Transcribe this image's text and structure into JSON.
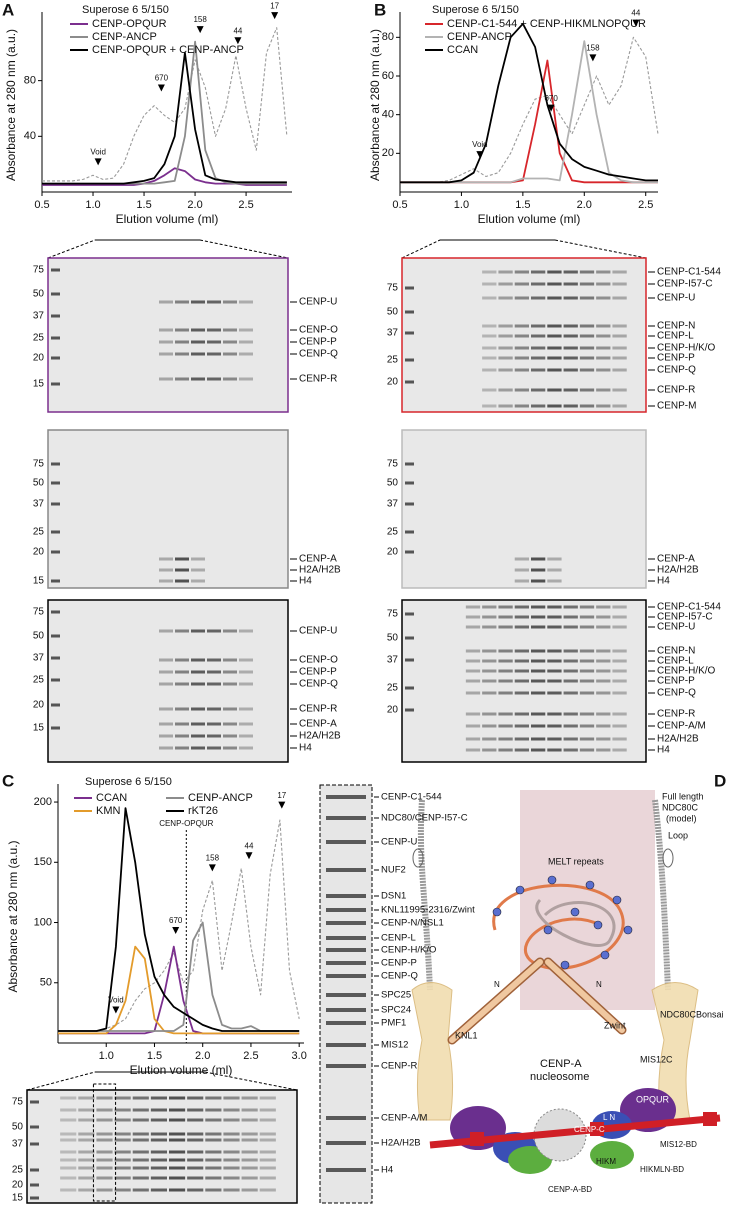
{
  "panel_labels": [
    "A",
    "B",
    "C",
    "D"
  ],
  "chart_data": [
    {
      "type": "line",
      "title": "Superose 6 5/150",
      "xlabel": "Elution volume (ml)",
      "ylabel": "Absorbance at 280 nm (a.u.)",
      "x": [
        0.5,
        0.6,
        0.7,
        0.8,
        0.9,
        1.0,
        1.1,
        1.2,
        1.3,
        1.4,
        1.5,
        1.6,
        1.7,
        1.8,
        1.9,
        2.0,
        2.1,
        2.2,
        2.3,
        2.4,
        2.5,
        2.6,
        2.7,
        2.8,
        2.9
      ],
      "xlim": [
        0.5,
        2.95
      ],
      "xticks": [
        0.5,
        {
          "value": 1,
          "label": "1.0"
        },
        1.5,
        {
          "value": 2,
          "label": "2.0"
        },
        2.5
      ],
      "ylim": [
        0,
        125
      ],
      "yticks": [
        40,
        80
      ],
      "legend": "top-left",
      "legend_columns": 1,
      "series": [
        {
          "color": "#9a9a9a",
          "dash": true,
          "values": [
            8,
            8,
            8,
            8,
            9,
            12,
            9,
            10,
            20,
            40,
            55,
            62,
            55,
            50,
            60,
            95,
            75,
            40,
            60,
            98,
            60,
            30,
            100,
            118,
            40
          ]
        },
        {
          "name": "CENP-OPQUR",
          "color": "#7b2f8e",
          "values": [
            5,
            5,
            5,
            5,
            5,
            5,
            5,
            5,
            5,
            5,
            6,
            8,
            12,
            17,
            15,
            9,
            7,
            6,
            6,
            6,
            5,
            5,
            5,
            5,
            5
          ]
        },
        {
          "name": "CENP-ANCP",
          "color": "#8c8c8c",
          "values": [
            6,
            6,
            6,
            6,
            6,
            6,
            6,
            6,
            6,
            6,
            6,
            6,
            7,
            8,
            40,
            108,
            30,
            10,
            7,
            6,
            6,
            6,
            6,
            6,
            6
          ]
        },
        {
          "name": "CENP-OPQUR + CENP-ANCP",
          "color": "#000000",
          "values": [
            6,
            6,
            6,
            6,
            6,
            6,
            6,
            6,
            6,
            7,
            8,
            10,
            20,
            40,
            100,
            45,
            12,
            9,
            8,
            7,
            7,
            7,
            7,
            7,
            7
          ]
        }
      ],
      "annotations": [
        {
          "text": "Void",
          "x": 1.05,
          "y": 17
        },
        {
          "text": "670",
          "x": 1.67,
          "y": 70
        },
        {
          "text": "158",
          "x": 2.05,
          "y": 112
        },
        {
          "text": "44",
          "x": 2.42,
          "y": 104
        },
        {
          "text": "17",
          "x": 2.78,
          "y": 122
        }
      ]
    },
    {
      "type": "line",
      "title": "Superose 6 5/150",
      "xlabel": "Elution volume (ml)",
      "ylabel": "Absorbance at 280 nm (a.u.)",
      "x": [
        0.5,
        0.6,
        0.7,
        0.8,
        0.9,
        1.0,
        1.1,
        1.2,
        1.3,
        1.4,
        1.5,
        1.6,
        1.7,
        1.8,
        1.9,
        2.0,
        2.1,
        2.2,
        2.3,
        2.4,
        2.5,
        2.6
      ],
      "xlim": [
        0.5,
        2.6
      ],
      "xticks": [
        0.5,
        {
          "value": 1,
          "label": "1.0"
        },
        1.5,
        {
          "value": 2,
          "label": "2.0"
        },
        2.5
      ],
      "ylim": [
        0,
        90
      ],
      "yticks": [
        20,
        40,
        60,
        80
      ],
      "legend": "top-left",
      "legend_columns": 1,
      "series": [
        {
          "color": "#9a9a9a",
          "dash": true,
          "values": [
            5,
            5,
            5,
            5,
            6,
            9,
            12,
            8,
            10,
            20,
            35,
            48,
            50,
            40,
            30,
            45,
            60,
            45,
            55,
            80,
            70,
            30
          ]
        },
        {
          "name": "CENP-C1-544 + CENP-HIKMLNOPQUR",
          "color": "#d7262b",
          "values": [
            5,
            5,
            5,
            5,
            5,
            5,
            5,
            5,
            5,
            5,
            6,
            35,
            68,
            20,
            6,
            5,
            5,
            5,
            5,
            5,
            5,
            5
          ]
        },
        {
          "name": "CENP-ANCP",
          "color": "#b3b3b3",
          "values": [
            5,
            5,
            5,
            5,
            5,
            5,
            5,
            5,
            5,
            5,
            7,
            7,
            7,
            6,
            40,
            78,
            40,
            10,
            6,
            5,
            5,
            5
          ]
        },
        {
          "name": "CCAN",
          "color": "#000000",
          "values": [
            5,
            5,
            5,
            5,
            5,
            6,
            10,
            25,
            55,
            80,
            87,
            75,
            45,
            25,
            17,
            13,
            11,
            9,
            8,
            7,
            6,
            6
          ]
        }
      ],
      "annotations": [
        {
          "text": "Void",
          "x": 1.15,
          "y": 16
        },
        {
          "text": "670",
          "x": 1.73,
          "y": 40
        },
        {
          "text": "158",
          "x": 2.07,
          "y": 66
        },
        {
          "text": "44",
          "x": 2.42,
          "y": 84
        }
      ]
    },
    {
      "type": "line",
      "title": "Superose 6 5/150",
      "xlabel": "Elution volume (ml)",
      "ylabel": "Absorbance at 280 nm (a.u.)",
      "x": [
        0.5,
        0.6,
        0.7,
        0.8,
        0.9,
        1.0,
        1.1,
        1.2,
        1.3,
        1.4,
        1.5,
        1.6,
        1.7,
        1.8,
        1.9,
        2.0,
        2.1,
        2.2,
        2.3,
        2.4,
        2.5,
        2.6,
        2.7,
        2.8,
        2.9,
        3.0
      ],
      "xlim": [
        0.5,
        3.05
      ],
      "xticks": [
        {
          "value": 1,
          "label": "1.0"
        },
        1.5,
        {
          "value": 2,
          "label": "2.0"
        },
        2.5,
        {
          "value": 3,
          "label": "3.0"
        }
      ],
      "ylim": [
        0,
        210
      ],
      "yticks": [
        50,
        100,
        150,
        200
      ],
      "legend": "top-left",
      "legend_columns": 2,
      "series": [
        {
          "color": "#9a9a9a",
          "dash": true,
          "values": [
            10,
            10,
            10,
            10,
            10,
            12,
            15,
            20,
            35,
            45,
            50,
            60,
            75,
            50,
            60,
            110,
            135,
            60,
            100,
            145,
            80,
            40,
            140,
            185,
            60,
            20
          ]
        },
        {
          "name": "CCAN",
          "color": "#7b2f8e",
          "values": [
            8,
            8,
            8,
            8,
            8,
            8,
            8,
            8,
            8,
            8,
            10,
            40,
            80,
            35,
            10,
            8,
            8,
            8,
            8,
            8,
            8,
            8,
            8,
            8,
            8,
            8
          ]
        },
        {
          "name": "KMN",
          "color": "#e39b2b",
          "values": [
            8,
            8,
            8,
            8,
            8,
            8,
            15,
            35,
            80,
            70,
            20,
            10,
            8,
            8,
            8,
            8,
            8,
            8,
            8,
            8,
            8,
            8,
            8,
            8,
            8,
            8
          ]
        },
        {
          "name": "CENP-ANCP",
          "color": "#8c8c8c",
          "values": [
            10,
            10,
            10,
            10,
            10,
            10,
            10,
            10,
            10,
            10,
            10,
            10,
            10,
            15,
            85,
            100,
            40,
            15,
            12,
            12,
            14,
            10,
            10,
            10,
            10,
            10
          ]
        },
        {
          "name": "rKT26",
          "color": "#000000",
          "values": [
            10,
            10,
            10,
            10,
            10,
            12,
            80,
            195,
            150,
            90,
            55,
            40,
            30,
            25,
            20,
            15,
            12,
            10,
            10,
            10,
            10,
            10,
            10,
            10,
            10,
            10
          ]
        }
      ],
      "annotations": [
        {
          "text": "Void",
          "x": 1.1,
          "y": 22
        },
        {
          "text": "670",
          "x": 1.72,
          "y": 88
        },
        {
          "text": "158",
          "x": 2.1,
          "y": 140
        },
        {
          "text": "44",
          "x": 2.48,
          "y": 150
        },
        {
          "text": "17",
          "x": 2.82,
          "y": 192
        }
      ],
      "vline": {
        "x": 1.83,
        "label": "CENP-OPQUR"
      }
    }
  ],
  "gels": [
    {
      "ladder": [
        75,
        50,
        37,
        25,
        20,
        15
      ],
      "labels": [
        "CENP-U",
        "CENP-O",
        "CENP-P",
        "CENP-Q",
        "CENP-R"
      ]
    },
    {
      "ladder": [
        75,
        50,
        37,
        25,
        20,
        15
      ],
      "labels": [
        "CENP-A",
        "H2A/H2B",
        "H4"
      ]
    },
    {
      "ladder": [
        75,
        50,
        37,
        25,
        20,
        15
      ],
      "labels": [
        "CENP-U",
        "CENP-O",
        "CENP-P",
        "CENP-Q",
        "CENP-R",
        "CENP-A",
        "H2A/H2B",
        "H4"
      ]
    },
    {
      "ladder": [
        75,
        50,
        37,
        25,
        20
      ],
      "labels": [
        "CENP-C1-544",
        "CENP-I57-C",
        "CENP-U",
        "CENP-N",
        "CENP-L",
        "CENP-H/K/O",
        "CENP-P",
        "CENP-Q",
        "CENP-R",
        "CENP-M"
      ]
    },
    {
      "ladder": [
        75,
        50,
        37,
        25,
        20
      ],
      "labels": [
        "CENP-A",
        "H2A/H2B",
        "H4"
      ]
    },
    {
      "ladder": [
        75,
        50,
        37,
        25,
        20
      ],
      "labels": [
        "CENP-C1-544",
        "CENP-I57-C",
        "CENP-U",
        "CENP-N",
        "CENP-L",
        "CENP-H/K/O",
        "CENP-P",
        "CENP-Q",
        "CENP-R",
        "CENP-A/M",
        "H2A/H2B",
        "H4"
      ]
    },
    {
      "ladder": [
        75,
        50,
        37,
        25,
        20,
        15
      ],
      "labels": []
    }
  ],
  "column_gel": {
    "labels": [
      "CENP-C1-544",
      "NDC80/CENP-I57-C",
      "CENP-U",
      "NUF2",
      "DSN1",
      "KNL11995-2316/Zwint",
      "CENP-N/NSL1",
      "CENP-L",
      "CENP-H/K/O",
      "CENP-P",
      "CENP-Q",
      "SPC25",
      "SPC24",
      "PMF1",
      "MIS12",
      "CENP-R",
      "CENP-A/M",
      "H2A/H2B",
      "H4"
    ]
  },
  "diagram": {
    "ndc80_full": [
      "Full length",
      "NDC80C",
      "(model)"
    ],
    "loop": "Loop",
    "melt": "MELT repeats",
    "n_left": "N",
    "n_right": "N",
    "bonsai": "NDC80CBonsai",
    "knl1": "KNL1",
    "zwint": "Zwint",
    "nucleosome": [
      "CENP-A",
      "nucleosome"
    ],
    "mis12c": "MIS12C",
    "opqur": "OPQUR",
    "cenpc": "CENP-C",
    "ln": "L N",
    "hikm": "HIKM",
    "cenpa_bd": "CENP-A-BD",
    "hikmln_bd": "HIKMLN-BD",
    "mis12_bd": "MIS12-BD"
  }
}
